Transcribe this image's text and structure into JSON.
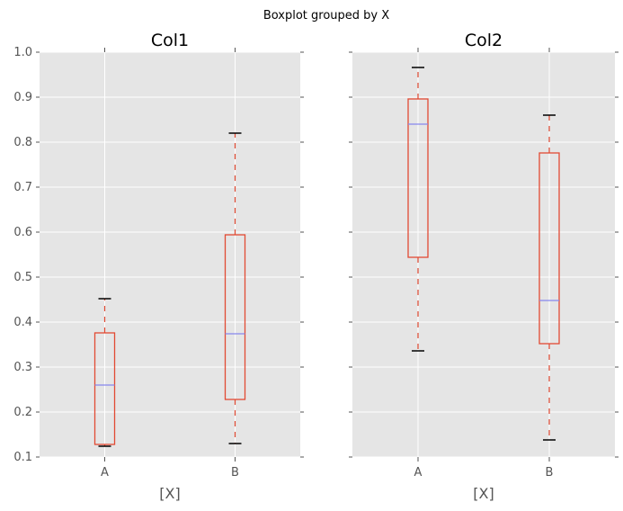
{
  "chart_data": [
    {
      "type": "box",
      "suptitle": "Boxplot grouped by X",
      "title": "Col1",
      "xlabel": "[X]",
      "ylabel": "",
      "categories": [
        "A",
        "B"
      ],
      "ylim": [
        0.1,
        1.0
      ],
      "yticks": [
        "0.1",
        "0.2",
        "0.3",
        "0.4",
        "0.5",
        "0.6",
        "0.7",
        "0.8",
        "0.9",
        "1.0"
      ],
      "grid": true,
      "boxes": [
        {
          "category": "A",
          "whisker_low": 0.124,
          "q1": 0.128,
          "median": 0.26,
          "q3": 0.376,
          "whisker_high": 0.452
        },
        {
          "category": "B",
          "whisker_low": 0.13,
          "q1": 0.228,
          "median": 0.374,
          "q3": 0.594,
          "whisker_high": 0.82
        }
      ]
    },
    {
      "type": "box",
      "title": "Col2",
      "xlabel": "[X]",
      "categories": [
        "A",
        "B"
      ],
      "ylim": [
        0.1,
        1.0
      ],
      "grid": true,
      "boxes": [
        {
          "category": "A",
          "whisker_low": 0.336,
          "q1": 0.544,
          "median": 0.84,
          "q3": 0.896,
          "whisker_high": 0.966
        },
        {
          "category": "B",
          "whisker_low": 0.138,
          "q1": 0.352,
          "median": 0.448,
          "q3": 0.776,
          "whisker_high": 0.86
        }
      ]
    }
  ],
  "colors": {
    "box": "#e24a33",
    "median": "#8888ee",
    "cap": "#000000",
    "panel": "#e5e5e5",
    "grid": "#ffffff",
    "tick_text": "#555555"
  }
}
